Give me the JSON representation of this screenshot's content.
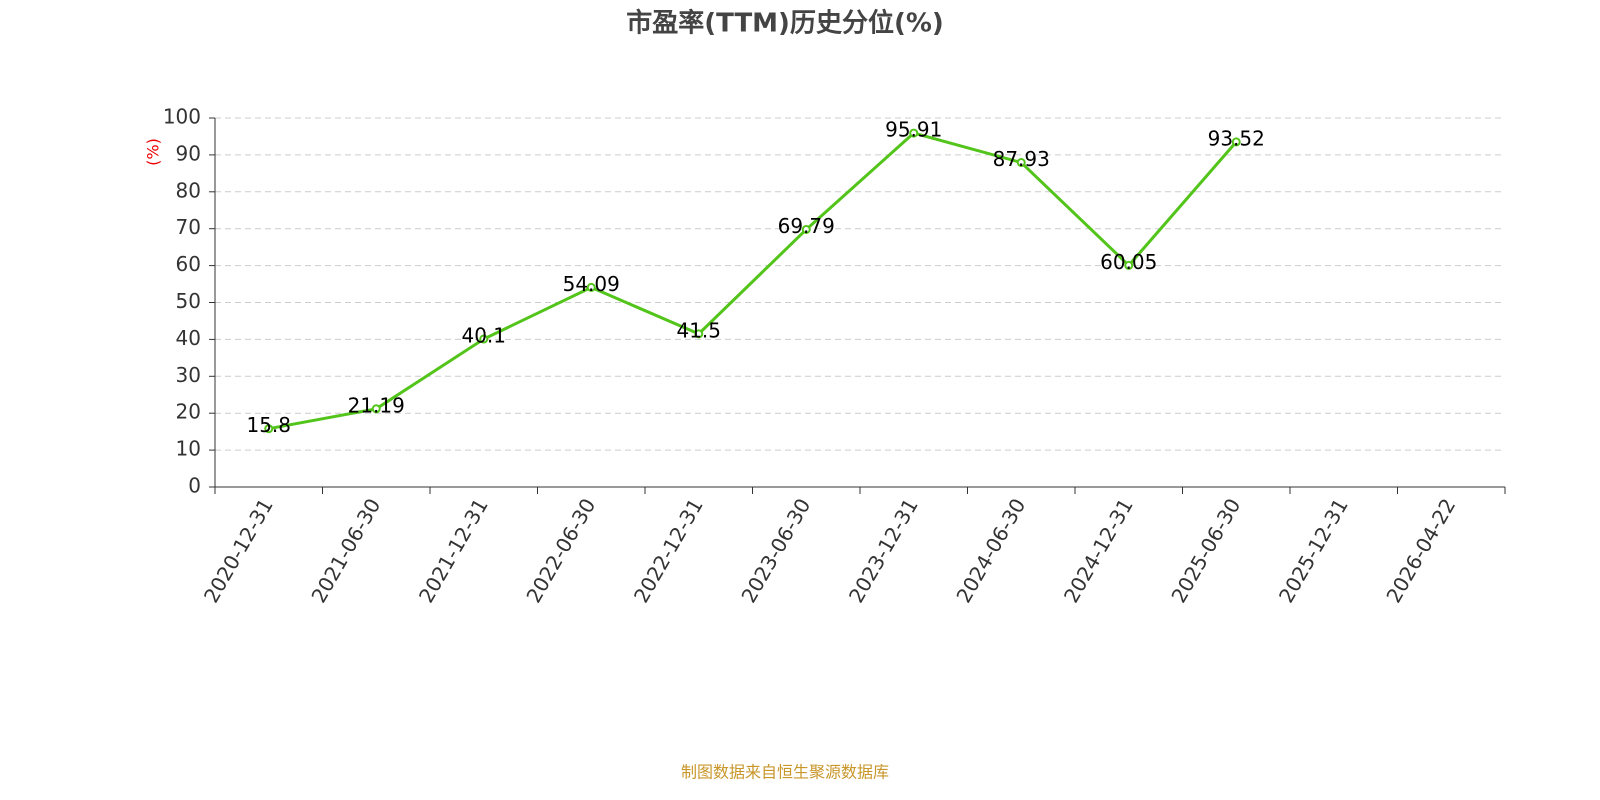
{
  "chart_data": {
    "type": "line",
    "title": "市盈率(TTM)历史分位(%)",
    "y_label": "(%)",
    "categories": [
      "2020-12-31",
      "2021-06-30",
      "2021-12-31",
      "2022-06-30",
      "2022-12-31",
      "2023-06-30",
      "2023-12-31",
      "2024-06-30",
      "2024-12-31",
      "2025-06-30",
      "2025-12-31",
      "2026-04-22"
    ],
    "values": [
      15.8,
      21.19,
      40.1,
      54.09,
      41.5,
      69.79,
      95.91,
      87.93,
      60.05,
      93.52,
      null,
      null
    ],
    "color": "#52c41a",
    "ylim": [
      0,
      100
    ],
    "yticks": [
      0,
      10,
      20,
      30,
      40,
      50,
      60,
      70,
      80,
      90,
      100
    ],
    "grid": true
  },
  "footer": "制图数据来自恒生聚源数据库"
}
